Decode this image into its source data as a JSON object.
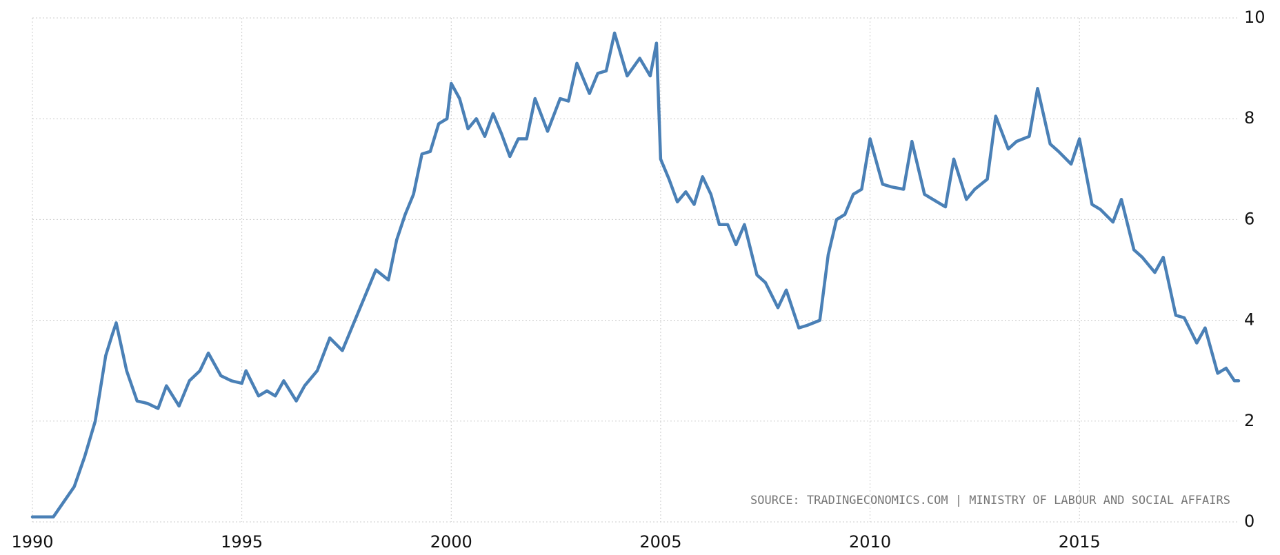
{
  "chart_data": {
    "type": "line",
    "source": "SOURCE: TRADINGECONOMICS.COM | MINISTRY OF LABOUR AND SOCIAL AFFAIRS",
    "x": [
      1990.0,
      1990.5,
      1990.75,
      1991.0,
      1991.25,
      1991.5,
      1991.75,
      1991.9,
      1992.0,
      1992.25,
      1992.5,
      1992.75,
      1993.0,
      1993.2,
      1993.5,
      1993.75,
      1994.0,
      1994.2,
      1994.5,
      1994.75,
      1995.0,
      1995.1,
      1995.4,
      1995.6,
      1995.8,
      1996.0,
      1996.3,
      1996.5,
      1996.8,
      1997.1,
      1997.4,
      1997.7,
      1997.9,
      1998.2,
      1998.5,
      1998.7,
      1998.9,
      1999.1,
      1999.3,
      1999.5,
      1999.7,
      1999.9,
      2000.0,
      2000.2,
      2000.4,
      2000.6,
      2000.8,
      2001.0,
      2001.2,
      2001.4,
      2001.6,
      2001.8,
      2002.0,
      2002.3,
      2002.6,
      2002.8,
      2003.0,
      2003.3,
      2003.5,
      2003.7,
      2003.9,
      2004.2,
      2004.5,
      2004.75,
      2004.9,
      2005.0,
      2005.2,
      2005.4,
      2005.6,
      2005.8,
      2006.0,
      2006.2,
      2006.4,
      2006.6,
      2006.8,
      2007.0,
      2007.3,
      2007.5,
      2007.8,
      2008.0,
      2008.3,
      2008.5,
      2008.8,
      2009.0,
      2009.2,
      2009.4,
      2009.6,
      2009.8,
      2010.0,
      2010.3,
      2010.5,
      2010.8,
      2011.0,
      2011.3,
      2011.5,
      2011.8,
      2012.0,
      2012.3,
      2012.5,
      2012.8,
      2013.0,
      2013.3,
      2013.5,
      2013.8,
      2014.0,
      2014.3,
      2014.5,
      2014.8,
      2015.0,
      2015.3,
      2015.5,
      2015.8,
      2016.0,
      2016.3,
      2016.5,
      2016.8,
      2017.0,
      2017.3,
      2017.5,
      2017.8,
      2018.0,
      2018.3,
      2018.5,
      2018.7,
      2018.8
    ],
    "series": [
      {
        "color": "#4a80b6",
        "values": [
          0.1,
          0.1,
          0.4,
          0.7,
          1.3,
          2.0,
          3.3,
          3.7,
          3.95,
          3.0,
          2.4,
          2.35,
          2.25,
          2.7,
          2.3,
          2.8,
          3.0,
          3.35,
          2.9,
          2.8,
          2.75,
          3.0,
          2.5,
          2.6,
          2.5,
          2.8,
          2.4,
          2.7,
          3.0,
          3.65,
          3.4,
          4.0,
          4.4,
          5.0,
          4.8,
          5.6,
          6.1,
          6.5,
          7.3,
          7.35,
          7.9,
          8.0,
          8.7,
          8.4,
          7.8,
          8.0,
          7.65,
          8.1,
          7.7,
          7.25,
          7.6,
          7.6,
          8.4,
          7.75,
          8.4,
          8.35,
          9.1,
          8.5,
          8.9,
          8.95,
          9.7,
          8.85,
          9.2,
          8.85,
          9.5,
          7.2,
          6.8,
          6.35,
          6.55,
          6.3,
          6.85,
          6.5,
          5.9,
          5.9,
          5.5,
          5.9,
          4.9,
          4.75,
          4.25,
          4.6,
          3.85,
          3.9,
          4.0,
          5.3,
          6.0,
          6.1,
          6.5,
          6.6,
          7.6,
          6.7,
          6.65,
          6.6,
          7.55,
          6.5,
          6.4,
          6.25,
          7.2,
          6.4,
          6.6,
          6.8,
          8.05,
          7.4,
          7.55,
          7.65,
          8.6,
          7.5,
          7.35,
          7.1,
          7.6,
          6.3,
          6.2,
          5.95,
          6.4,
          5.4,
          5.25,
          4.95,
          5.25,
          4.1,
          4.05,
          3.55,
          3.85,
          2.95,
          3.05,
          2.8,
          2.8
        ]
      }
    ],
    "xlim": [
      1990,
      2018.8
    ],
    "xticks": [
      1990,
      1995,
      2000,
      2005,
      2010,
      2015
    ],
    "ylim": [
      0,
      10
    ],
    "yticks": [
      0,
      2,
      4,
      6,
      8,
      10
    ],
    "grid": true
  }
}
